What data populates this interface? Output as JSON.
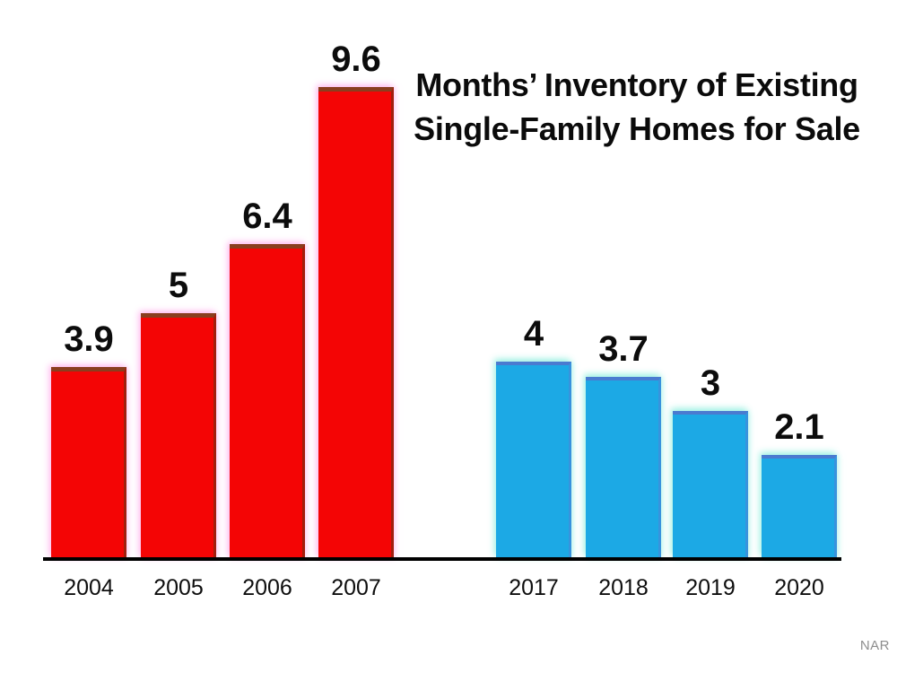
{
  "chart_data": {
    "type": "bar",
    "title": "Months’ Inventory of Existing Single-Family Homes for Sale",
    "title_lines": [
      "Months’ Inventory of Existing",
      "Single-Family Homes for Sale"
    ],
    "xlabel": "",
    "ylabel": "",
    "ylim": [
      0,
      10
    ],
    "grid": false,
    "legend_position": "none",
    "value_labels_shown": true,
    "categories": [
      "2004",
      "2005",
      "2006",
      "2007",
      "2017",
      "2018",
      "2019",
      "2020"
    ],
    "series": [
      {
        "name": "2004-2007",
        "color": "#f40505",
        "categories": [
          "2004",
          "2005",
          "2006",
          "2007"
        ],
        "values": [
          3.9,
          5,
          6.4,
          9.6
        ],
        "value_labels": [
          "3.9",
          "5",
          "6.4",
          "9.6"
        ]
      },
      {
        "name": "2017-2020",
        "color": "#1ca9e5",
        "categories": [
          "2017",
          "2018",
          "2019",
          "2020"
        ],
        "values": [
          4,
          3.7,
          3,
          2.1
        ],
        "value_labels": [
          "4",
          "3.7",
          "3",
          "2.1"
        ]
      }
    ],
    "source": "NAR"
  },
  "colors": {
    "background": "#ffffff",
    "red_fill": "#f40505",
    "red_edge": "#8a3e1f",
    "blue_fill": "#1ca9e5",
    "blue_edge": "#4a7bd0",
    "axis": "#000000",
    "text": "#0b0b0b",
    "source_text": "#8e8e8e"
  }
}
